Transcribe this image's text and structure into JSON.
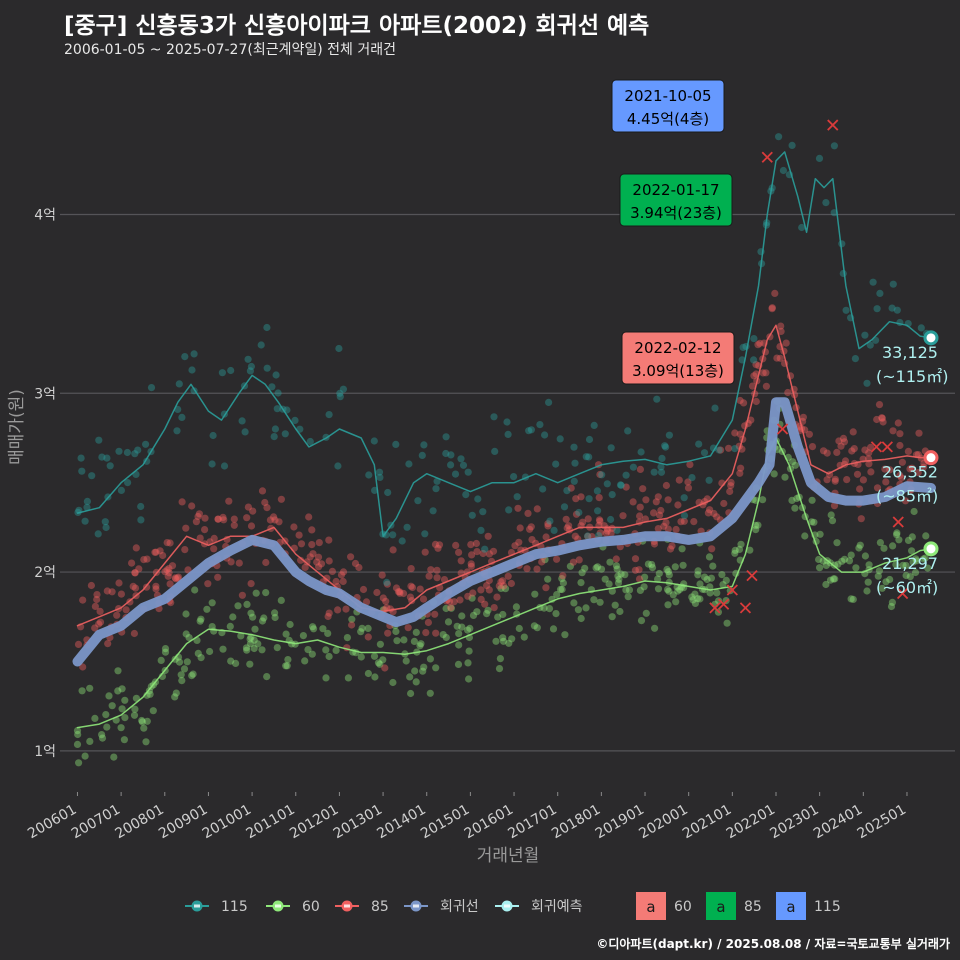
{
  "header": {
    "title": "[중구] 신흥동3가 신흥아이파크 아파트(2002) 회귀선 예측",
    "subtitle": "2006-01-05 ~ 2025-07-27(최근계약일) 전체 거래건"
  },
  "footer": "©디아파트(dapt.kr) / 2025.08.08 / 자료=국토교통부 실거래가",
  "chart_data": {
    "type": "scatter",
    "xlabel": "거래년월",
    "ylabel": "매매가(원)",
    "x_ticks": [
      "200601",
      "200701",
      "200801",
      "200901",
      "201001",
      "201101",
      "201201",
      "201301",
      "201401",
      "201501",
      "201601",
      "201701",
      "201801",
      "201901",
      "202001",
      "202101",
      "202201",
      "202301",
      "202401",
      "202501"
    ],
    "y_ticks": [
      {
        "value": 1,
        "label": "1억"
      },
      {
        "value": 2,
        "label": "2억"
      },
      {
        "value": 3,
        "label": "3억"
      },
      {
        "value": 4,
        "label": "4억"
      }
    ],
    "ylim": [
      0.77,
      4.78
    ],
    "xlim": [
      2005.6,
      2026.1
    ],
    "grid": "horizontal",
    "legend_position": "bottom",
    "colors": {
      "s115": "#2a9d9a",
      "s60": "#8fe87a",
      "s85": "#f06060",
      "reg": "#7b96c8",
      "pred": "#aaf0f0",
      "box115": "#6699ff",
      "box85": "#00b050",
      "box60": "#f47b76"
    },
    "series": [
      {
        "name": "115",
        "color": "#2a9d9a",
        "trend": [
          [
            2006.0,
            2.33
          ],
          [
            2006.5,
            2.36
          ],
          [
            2007.0,
            2.5
          ],
          [
            2007.5,
            2.6
          ],
          [
            2008.0,
            2.8
          ],
          [
            2008.3,
            2.95
          ],
          [
            2008.6,
            3.05
          ],
          [
            2009.0,
            2.9
          ],
          [
            2009.3,
            2.85
          ],
          [
            2009.7,
            3.0
          ],
          [
            2010.0,
            3.1
          ],
          [
            2010.3,
            3.05
          ],
          [
            2010.6,
            2.95
          ],
          [
            2011.0,
            2.8
          ],
          [
            2011.3,
            2.7
          ],
          [
            2011.7,
            2.75
          ],
          [
            2012.0,
            2.8
          ],
          [
            2012.5,
            2.75
          ],
          [
            2012.8,
            2.6
          ],
          [
            2013.0,
            2.2
          ],
          [
            2013.3,
            2.3
          ],
          [
            2013.7,
            2.5
          ],
          [
            2014.0,
            2.55
          ],
          [
            2014.5,
            2.5
          ],
          [
            2015.0,
            2.45
          ],
          [
            2015.5,
            2.5
          ],
          [
            2016.0,
            2.5
          ],
          [
            2016.5,
            2.55
          ],
          [
            2017.0,
            2.5
          ],
          [
            2017.5,
            2.55
          ],
          [
            2018.0,
            2.6
          ],
          [
            2018.5,
            2.62
          ],
          [
            2019.0,
            2.63
          ],
          [
            2019.5,
            2.6
          ],
          [
            2020.0,
            2.62
          ],
          [
            2020.5,
            2.65
          ],
          [
            2021.0,
            2.85
          ],
          [
            2021.3,
            3.2
          ],
          [
            2021.6,
            3.6
          ],
          [
            2021.8,
            4.0
          ],
          [
            2022.0,
            4.3
          ],
          [
            2022.2,
            4.35
          ],
          [
            2022.5,
            4.1
          ],
          [
            2022.7,
            3.9
          ],
          [
            2022.9,
            4.2
          ],
          [
            2023.1,
            4.15
          ],
          [
            2023.3,
            4.2
          ],
          [
            2023.6,
            3.6
          ],
          [
            2023.9,
            3.25
          ],
          [
            2024.2,
            3.3
          ],
          [
            2024.6,
            3.4
          ],
          [
            2025.0,
            3.38
          ],
          [
            2025.3,
            3.32
          ],
          [
            2025.55,
            3.31
          ]
        ]
      },
      {
        "name": "60",
        "color": "#8fe87a",
        "trend": [
          [
            2006.0,
            1.13
          ],
          [
            2006.5,
            1.15
          ],
          [
            2007.0,
            1.2
          ],
          [
            2007.5,
            1.3
          ],
          [
            2008.0,
            1.45
          ],
          [
            2008.5,
            1.6
          ],
          [
            2009.0,
            1.68
          ],
          [
            2009.5,
            1.67
          ],
          [
            2010.0,
            1.65
          ],
          [
            2010.5,
            1.62
          ],
          [
            2011.0,
            1.6
          ],
          [
            2011.5,
            1.62
          ],
          [
            2012.0,
            1.58
          ],
          [
            2012.5,
            1.55
          ],
          [
            2013.0,
            1.55
          ],
          [
            2013.5,
            1.54
          ],
          [
            2014.0,
            1.56
          ],
          [
            2014.5,
            1.6
          ],
          [
            2015.0,
            1.65
          ],
          [
            2015.5,
            1.7
          ],
          [
            2016.0,
            1.75
          ],
          [
            2016.5,
            1.8
          ],
          [
            2017.0,
            1.85
          ],
          [
            2017.5,
            1.88
          ],
          [
            2018.0,
            1.9
          ],
          [
            2018.5,
            1.92
          ],
          [
            2019.0,
            1.95
          ],
          [
            2019.5,
            1.94
          ],
          [
            2020.0,
            1.92
          ],
          [
            2020.5,
            1.9
          ],
          [
            2021.0,
            1.92
          ],
          [
            2021.3,
            2.1
          ],
          [
            2021.6,
            2.4
          ],
          [
            2021.8,
            2.65
          ],
          [
            2022.0,
            2.75
          ],
          [
            2022.3,
            2.6
          ],
          [
            2022.7,
            2.3
          ],
          [
            2023.0,
            2.1
          ],
          [
            2023.5,
            2.0
          ],
          [
            2024.0,
            2.0
          ],
          [
            2024.5,
            2.05
          ],
          [
            2025.0,
            2.08
          ],
          [
            2025.3,
            2.12
          ],
          [
            2025.55,
            2.13
          ]
        ]
      },
      {
        "name": "85",
        "color": "#f06060",
        "trend": [
          [
            2006.0,
            1.7
          ],
          [
            2006.5,
            1.75
          ],
          [
            2007.0,
            1.8
          ],
          [
            2007.5,
            1.9
          ],
          [
            2008.0,
            2.05
          ],
          [
            2008.5,
            2.2
          ],
          [
            2009.0,
            2.15
          ],
          [
            2009.5,
            2.2
          ],
          [
            2010.0,
            2.2
          ],
          [
            2010.5,
            2.25
          ],
          [
            2011.0,
            2.1
          ],
          [
            2011.5,
            2.0
          ],
          [
            2012.0,
            1.9
          ],
          [
            2012.5,
            1.8
          ],
          [
            2013.0,
            1.78
          ],
          [
            2013.5,
            1.8
          ],
          [
            2014.0,
            1.9
          ],
          [
            2014.5,
            1.95
          ],
          [
            2015.0,
            2.0
          ],
          [
            2015.5,
            2.05
          ],
          [
            2016.0,
            2.1
          ],
          [
            2016.5,
            2.15
          ],
          [
            2017.0,
            2.2
          ],
          [
            2017.5,
            2.25
          ],
          [
            2018.0,
            2.25
          ],
          [
            2018.5,
            2.25
          ],
          [
            2019.0,
            2.28
          ],
          [
            2019.5,
            2.3
          ],
          [
            2020.0,
            2.35
          ],
          [
            2020.5,
            2.4
          ],
          [
            2021.0,
            2.55
          ],
          [
            2021.3,
            2.8
          ],
          [
            2021.6,
            3.1
          ],
          [
            2021.8,
            3.3
          ],
          [
            2022.0,
            3.38
          ],
          [
            2022.2,
            3.2
          ],
          [
            2022.5,
            2.9
          ],
          [
            2022.8,
            2.6
          ],
          [
            2023.2,
            2.55
          ],
          [
            2023.6,
            2.6
          ],
          [
            2024.0,
            2.62
          ],
          [
            2024.5,
            2.63
          ],
          [
            2025.0,
            2.65
          ],
          [
            2025.3,
            2.64
          ],
          [
            2025.55,
            2.64
          ]
        ]
      },
      {
        "name": "회귀선",
        "color": "#7b96c8",
        "trend": [
          [
            2006.0,
            1.5
          ],
          [
            2006.5,
            1.65
          ],
          [
            2007.0,
            1.7
          ],
          [
            2007.5,
            1.8
          ],
          [
            2008.0,
            1.85
          ],
          [
            2008.5,
            1.95
          ],
          [
            2009.0,
            2.05
          ],
          [
            2009.5,
            2.12
          ],
          [
            2010.0,
            2.18
          ],
          [
            2010.5,
            2.15
          ],
          [
            2011.0,
            2.0
          ],
          [
            2011.3,
            1.95
          ],
          [
            2011.7,
            1.9
          ],
          [
            2012.0,
            1.88
          ],
          [
            2012.5,
            1.8
          ],
          [
            2013.0,
            1.75
          ],
          [
            2013.3,
            1.72
          ],
          [
            2013.7,
            1.75
          ],
          [
            2014.0,
            1.8
          ],
          [
            2014.5,
            1.88
          ],
          [
            2015.0,
            1.95
          ],
          [
            2015.5,
            2.0
          ],
          [
            2016.0,
            2.05
          ],
          [
            2016.5,
            2.1
          ],
          [
            2017.0,
            2.12
          ],
          [
            2017.5,
            2.15
          ],
          [
            2018.0,
            2.17
          ],
          [
            2018.5,
            2.18
          ],
          [
            2019.0,
            2.2
          ],
          [
            2019.5,
            2.2
          ],
          [
            2020.0,
            2.18
          ],
          [
            2020.5,
            2.2
          ],
          [
            2021.0,
            2.3
          ],
          [
            2021.3,
            2.4
          ],
          [
            2021.6,
            2.5
          ],
          [
            2021.85,
            2.6
          ],
          [
            2022.0,
            2.95
          ],
          [
            2022.2,
            2.95
          ],
          [
            2022.5,
            2.7
          ],
          [
            2022.8,
            2.5
          ],
          [
            2023.2,
            2.42
          ],
          [
            2023.6,
            2.4
          ],
          [
            2024.0,
            2.4
          ],
          [
            2024.5,
            2.42
          ],
          [
            2025.0,
            2.48
          ],
          [
            2025.55,
            2.47
          ]
        ]
      }
    ],
    "legend": [
      {
        "name": "115",
        "kind": "line-point",
        "color": "#2a9d9a"
      },
      {
        "name": "60",
        "kind": "line-point",
        "color": "#8fe87a"
      },
      {
        "name": "85",
        "kind": "line-point",
        "color": "#f06060"
      },
      {
        "name": "회귀선",
        "kind": "line-point",
        "color": "#7b96c8"
      },
      {
        "name": "회귀예측",
        "kind": "line-point",
        "color": "#aaf0f0"
      },
      {
        "name": "60",
        "kind": "box",
        "color": "#f47b76"
      },
      {
        "name": "85",
        "kind": "box",
        "color": "#00b050"
      },
      {
        "name": "115",
        "kind": "box",
        "color": "#6699ff"
      }
    ],
    "annotations": [
      {
        "date": "2021-10-05",
        "price": "4.45억(4층)",
        "x": 2021.76,
        "y": 4.45,
        "color": "#6699ff",
        "text_color": "#000000"
      },
      {
        "date": "2022-01-17",
        "price": "3.94억(23층)",
        "x": 2022.04,
        "y": 3.94,
        "color": "#00b050",
        "text_color": "#000000"
      },
      {
        "date": "2022-02-12",
        "price": "3.09억(13층)",
        "x": 2022.12,
        "y": 3.09,
        "color": "#f47b76",
        "text_color": "#000000"
      }
    ],
    "end_labels": [
      {
        "value": "33,125",
        "area": "(~115㎡)",
        "y": 3.31,
        "color": "#2a9d9a"
      },
      {
        "value": "26,352",
        "area": "(~85㎡)",
        "y": 2.64,
        "color": "#f06060"
      },
      {
        "value": "21,297",
        "area": "(~60㎡)",
        "y": 2.13,
        "color": "#8fe87a"
      }
    ],
    "cross_markers": [
      {
        "x": 2023.3,
        "y": 4.5
      },
      {
        "x": 2021.8,
        "y": 4.32
      },
      {
        "x": 2020.8,
        "y": 1.82
      },
      {
        "x": 2020.6,
        "y": 1.8
      },
      {
        "x": 2021.3,
        "y": 1.8
      },
      {
        "x": 2021.45,
        "y": 1.98
      },
      {
        "x": 2021.0,
        "y": 1.9
      },
      {
        "x": 2024.3,
        "y": 2.7
      },
      {
        "x": 2024.55,
        "y": 2.7
      },
      {
        "x": 2024.8,
        "y": 2.28
      },
      {
        "x": 2024.9,
        "y": 1.88
      },
      {
        "x": 2022.15,
        "y": 2.8
      }
    ]
  }
}
